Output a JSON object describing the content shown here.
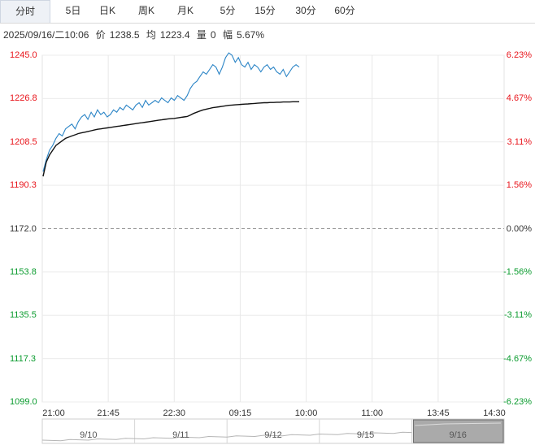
{
  "tabs": [
    {
      "label": "分时",
      "active": true
    },
    {
      "label": "5日"
    },
    {
      "label": "日K"
    },
    {
      "label": "周K"
    },
    {
      "label": "月K"
    },
    {
      "label": "5分"
    },
    {
      "label": "15分"
    },
    {
      "label": "30分"
    },
    {
      "label": "60分"
    }
  ],
  "info": {
    "datetime": "2025/09/16/二10:06",
    "price_label": "价",
    "price": "1238.5",
    "avg_label": "均",
    "avg": "1223.4",
    "vol_label": "量",
    "vol": "0",
    "change_label": "幅",
    "change": "5.67%"
  },
  "colors": {
    "up": "#e8141b",
    "down": "#0a9b2e",
    "neutral": "#333333",
    "price_line": "#2a84c6",
    "avg_line": "#111111"
  },
  "chart_data": {
    "type": "line",
    "y_ticks_left": [
      "1245.0",
      "1226.8",
      "1208.5",
      "1190.3",
      "1172.0",
      "1153.8",
      "1135.5",
      "1117.3",
      "1099.0"
    ],
    "y_ticks_right": [
      "6.23%",
      "4.67%",
      "3.11%",
      "1.56%",
      "0.00%",
      "-1.56%",
      "-3.11%",
      "-4.67%",
      "-6.23%"
    ],
    "ylim": [
      1099.0,
      1245.0
    ],
    "base_price": 1172.0,
    "x_ticks": [
      "21:00",
      "21:45",
      "22:30",
      "09:15",
      "10:00",
      "11:00",
      "13:45",
      "14:30"
    ],
    "navigator_dates": [
      "9/10",
      "9/11",
      "9/12",
      "9/15",
      "9/16"
    ],
    "series": [
      {
        "key": "price",
        "values": [
          1196,
          1201,
          1205,
          1207,
          1210,
          1212,
          1211,
          1214,
          1215,
          1216,
          1214,
          1217,
          1219,
          1220,
          1218,
          1221,
          1219,
          1222,
          1220,
          1221,
          1219,
          1220,
          1222,
          1221,
          1223,
          1222,
          1224,
          1223,
          1222,
          1224,
          1225,
          1223,
          1226,
          1224,
          1225,
          1226,
          1225,
          1227,
          1226,
          1225,
          1227,
          1226,
          1228,
          1227,
          1226,
          1228,
          1231,
          1233,
          1234,
          1236,
          1238,
          1237,
          1239,
          1241,
          1240,
          1237,
          1240,
          1244,
          1246,
          1245,
          1242,
          1244,
          1241,
          1240,
          1242,
          1239,
          1241,
          1240,
          1238,
          1240,
          1241,
          1239,
          1240,
          1238,
          1237,
          1239,
          1236,
          1238,
          1240,
          1241,
          1240
        ]
      },
      {
        "key": "average",
        "values": [
          1194,
          1200,
          1203,
          1205,
          1207,
          1208,
          1209,
          1210,
          1210.5,
          1211,
          1211.5,
          1212,
          1212.3,
          1212.6,
          1212.9,
          1213.2,
          1213.5,
          1213.8,
          1214,
          1214.2,
          1214.4,
          1214.6,
          1214.8,
          1215,
          1215.2,
          1215.4,
          1215.6,
          1215.8,
          1216,
          1216.2,
          1216.4,
          1216.6,
          1216.8,
          1217,
          1217.2,
          1217.4,
          1217.6,
          1217.8,
          1218,
          1218.2,
          1218.3,
          1218.4,
          1218.6,
          1218.8,
          1219,
          1219.2,
          1219.8,
          1220.5,
          1221,
          1221.5,
          1222,
          1222.3,
          1222.6,
          1222.9,
          1223.1,
          1223.3,
          1223.5,
          1223.7,
          1223.9,
          1224,
          1224.1,
          1224.2,
          1224.3,
          1224.4,
          1224.5,
          1224.6,
          1224.7,
          1224.8,
          1224.9,
          1225,
          1225,
          1225.1,
          1225.1,
          1225.2,
          1225.2,
          1225.3,
          1225.3,
          1225.3,
          1225.4,
          1225.4,
          1225.4
        ]
      }
    ],
    "session_minutes_total": 555,
    "elapsed_minutes": 81
  }
}
